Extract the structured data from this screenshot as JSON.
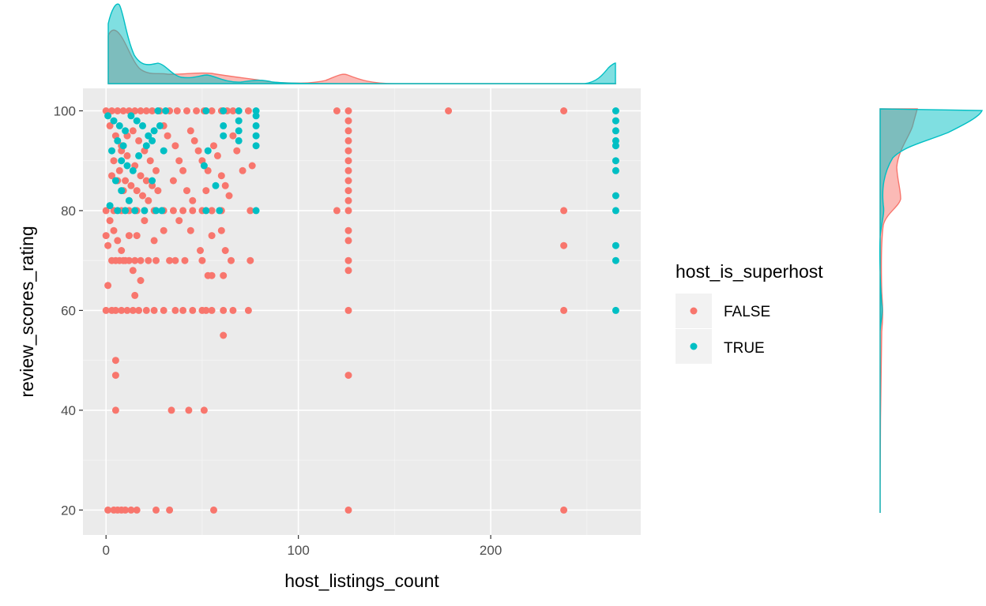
{
  "chart_data": {
    "type": "scatter",
    "title": "",
    "xlabel": "host_listings_count",
    "ylabel": "review_scores_rating",
    "xlim": [
      -12,
      278
    ],
    "ylim": [
      15,
      104.5
    ],
    "x_ticks": [
      0,
      100,
      200
    ],
    "y_ticks": [
      20,
      40,
      60,
      80,
      100
    ],
    "grid": true,
    "legend": {
      "title": "host_is_superhost",
      "placement": "right"
    },
    "marginal_densities": {
      "top": "host_listings_count",
      "right": "review_scores_rating"
    },
    "series": [
      {
        "name": "FALSE",
        "color": "#F8766D",
        "points": [
          [
            0,
            100
          ],
          [
            3,
            100
          ],
          [
            6,
            100
          ],
          [
            9,
            100
          ],
          [
            12,
            100
          ],
          [
            15,
            100
          ],
          [
            18,
            100
          ],
          [
            21,
            100
          ],
          [
            24,
            100
          ],
          [
            28,
            100
          ],
          [
            33,
            100
          ],
          [
            37,
            100
          ],
          [
            42,
            100
          ],
          [
            47,
            100
          ],
          [
            51,
            100
          ],
          [
            55,
            100
          ],
          [
            60,
            100
          ],
          [
            63,
            100
          ],
          [
            66,
            100
          ],
          [
            74,
            100
          ],
          [
            120,
            100
          ],
          [
            126,
            100
          ],
          [
            178,
            100
          ],
          [
            238,
            100
          ],
          [
            2,
            97
          ],
          [
            5,
            95
          ],
          [
            8,
            93
          ],
          [
            11,
            91
          ],
          [
            14,
            96
          ],
          [
            17,
            94
          ],
          [
            20,
            92
          ],
          [
            23,
            90
          ],
          [
            26,
            88
          ],
          [
            4,
            90
          ],
          [
            7,
            88
          ],
          [
            10,
            86
          ],
          [
            13,
            85
          ],
          [
            16,
            84
          ],
          [
            19,
            83
          ],
          [
            22,
            82
          ],
          [
            6,
            86
          ],
          [
            9,
            84
          ],
          [
            12,
            82
          ],
          [
            18,
            87
          ],
          [
            21,
            86
          ],
          [
            24,
            85
          ],
          [
            27,
            84
          ],
          [
            15,
            89
          ],
          [
            8,
            92
          ],
          [
            3,
            87
          ],
          [
            11,
            95
          ],
          [
            30,
            97
          ],
          [
            32,
            95
          ],
          [
            36,
            93
          ],
          [
            38,
            90
          ],
          [
            40,
            88
          ],
          [
            44,
            96
          ],
          [
            46,
            94
          ],
          [
            48,
            92
          ],
          [
            50,
            90
          ],
          [
            53,
            88
          ],
          [
            56,
            93
          ],
          [
            58,
            91
          ],
          [
            60,
            87
          ],
          [
            62,
            85
          ],
          [
            64,
            83
          ],
          [
            66,
            95
          ],
          [
            68,
            92
          ],
          [
            71,
            88
          ],
          [
            76,
            89
          ],
          [
            35,
            86
          ],
          [
            42,
            84
          ],
          [
            45,
            82
          ],
          [
            52,
            84
          ],
          [
            55,
            80
          ],
          [
            126,
            98
          ],
          [
            126,
            96
          ],
          [
            126,
            94
          ],
          [
            126,
            92
          ],
          [
            126,
            90
          ],
          [
            126,
            88
          ],
          [
            126,
            86
          ],
          [
            126,
            84
          ],
          [
            126,
            82
          ],
          [
            126,
            80
          ],
          [
            126,
            76
          ],
          [
            126,
            74
          ],
          [
            126,
            70
          ],
          [
            126,
            68
          ],
          [
            126,
            60
          ],
          [
            126,
            47
          ],
          [
            126,
            20
          ],
          [
            120,
            80
          ],
          [
            0,
            80
          ],
          [
            4,
            80
          ],
          [
            8,
            80
          ],
          [
            12,
            80
          ],
          [
            16,
            80
          ],
          [
            20,
            80
          ],
          [
            25,
            80
          ],
          [
            30,
            80
          ],
          [
            35,
            80
          ],
          [
            40,
            80
          ],
          [
            45,
            80
          ],
          [
            50,
            80
          ],
          [
            55,
            80
          ],
          [
            60,
            80
          ],
          [
            75,
            80
          ],
          [
            2,
            78
          ],
          [
            4,
            76
          ],
          [
            6,
            74
          ],
          [
            8,
            72
          ],
          [
            10,
            70
          ],
          [
            0,
            75
          ],
          [
            1,
            73
          ],
          [
            3,
            70
          ],
          [
            5,
            70
          ],
          [
            7,
            70
          ],
          [
            9,
            70
          ],
          [
            12,
            70
          ],
          [
            15,
            70
          ],
          [
            18,
            70
          ],
          [
            22,
            70
          ],
          [
            26,
            70
          ],
          [
            33,
            70
          ],
          [
            36,
            70
          ],
          [
            41,
            70
          ],
          [
            50,
            70
          ],
          [
            53,
            67
          ],
          [
            55,
            67
          ],
          [
            61,
            67
          ],
          [
            65,
            70
          ],
          [
            75,
            70
          ],
          [
            14,
            68
          ],
          [
            18,
            66
          ],
          [
            15,
            63
          ],
          [
            1,
            65
          ],
          [
            12,
            75
          ],
          [
            16,
            75
          ],
          [
            20,
            78
          ],
          [
            25,
            74
          ],
          [
            30,
            76
          ],
          [
            38,
            78
          ],
          [
            44,
            76
          ],
          [
            49,
            72
          ],
          [
            55,
            75
          ],
          [
            60,
            76
          ],
          [
            62,
            72
          ],
          [
            0,
            60
          ],
          [
            3,
            60
          ],
          [
            5,
            60
          ],
          [
            8,
            60
          ],
          [
            11,
            60
          ],
          [
            14,
            60
          ],
          [
            17,
            60
          ],
          [
            21,
            60
          ],
          [
            25,
            60
          ],
          [
            30,
            60
          ],
          [
            36,
            60
          ],
          [
            40,
            60
          ],
          [
            45,
            60
          ],
          [
            50,
            60
          ],
          [
            52,
            60
          ],
          [
            55,
            60
          ],
          [
            61,
            60
          ],
          [
            66,
            60
          ],
          [
            74,
            60
          ],
          [
            61,
            55
          ],
          [
            5,
            50
          ],
          [
            5,
            47
          ],
          [
            5,
            40
          ],
          [
            34,
            40
          ],
          [
            43,
            40
          ],
          [
            51,
            40
          ],
          [
            1,
            20
          ],
          [
            4,
            20
          ],
          [
            6,
            20
          ],
          [
            8,
            20
          ],
          [
            10,
            20
          ],
          [
            13,
            20
          ],
          [
            16,
            20
          ],
          [
            26,
            20
          ],
          [
            33,
            20
          ],
          [
            56,
            20
          ],
          [
            238,
            80
          ],
          [
            238,
            73
          ],
          [
            238,
            60
          ],
          [
            238,
            20
          ]
        ]
      },
      {
        "name": "TRUE",
        "color": "#00BFC4",
        "points": [
          [
            1,
            99
          ],
          [
            4,
            98
          ],
          [
            7,
            97
          ],
          [
            10,
            96
          ],
          [
            13,
            99
          ],
          [
            16,
            98
          ],
          [
            19,
            97
          ],
          [
            22,
            95
          ],
          [
            25,
            96
          ],
          [
            6,
            94
          ],
          [
            9,
            93
          ],
          [
            3,
            92
          ],
          [
            11,
            89
          ],
          [
            14,
            88
          ],
          [
            8,
            90
          ],
          [
            17,
            91
          ],
          [
            21,
            93
          ],
          [
            24,
            94
          ],
          [
            28,
            97
          ],
          [
            30,
            92
          ],
          [
            5,
            86
          ],
          [
            8,
            84
          ],
          [
            12,
            82
          ],
          [
            15,
            80
          ],
          [
            2,
            81
          ],
          [
            6,
            80
          ],
          [
            10,
            80
          ],
          [
            20,
            80
          ],
          [
            26,
            80
          ],
          [
            29,
            80
          ],
          [
            24,
            86
          ],
          [
            27,
            100
          ],
          [
            31,
            100
          ],
          [
            52,
            100
          ],
          [
            61,
            100
          ],
          [
            69,
            100
          ],
          [
            78,
            100
          ],
          [
            78,
            99
          ],
          [
            78,
            97
          ],
          [
            78,
            95
          ],
          [
            78,
            93
          ],
          [
            69,
            98
          ],
          [
            69,
            96
          ],
          [
            69,
            94
          ],
          [
            61,
            97
          ],
          [
            61,
            95
          ],
          [
            53,
            92
          ],
          [
            51,
            89
          ],
          [
            57,
            85
          ],
          [
            52,
            80
          ],
          [
            59,
            80
          ],
          [
            78,
            80
          ],
          [
            265,
            100
          ],
          [
            265,
            98
          ],
          [
            265,
            96
          ],
          [
            265,
            94
          ],
          [
            265,
            93
          ],
          [
            265,
            90
          ],
          [
            265,
            88
          ],
          [
            265,
            83
          ],
          [
            265,
            80
          ],
          [
            265,
            73
          ],
          [
            265,
            70
          ],
          [
            265,
            60
          ]
        ]
      }
    ]
  }
}
